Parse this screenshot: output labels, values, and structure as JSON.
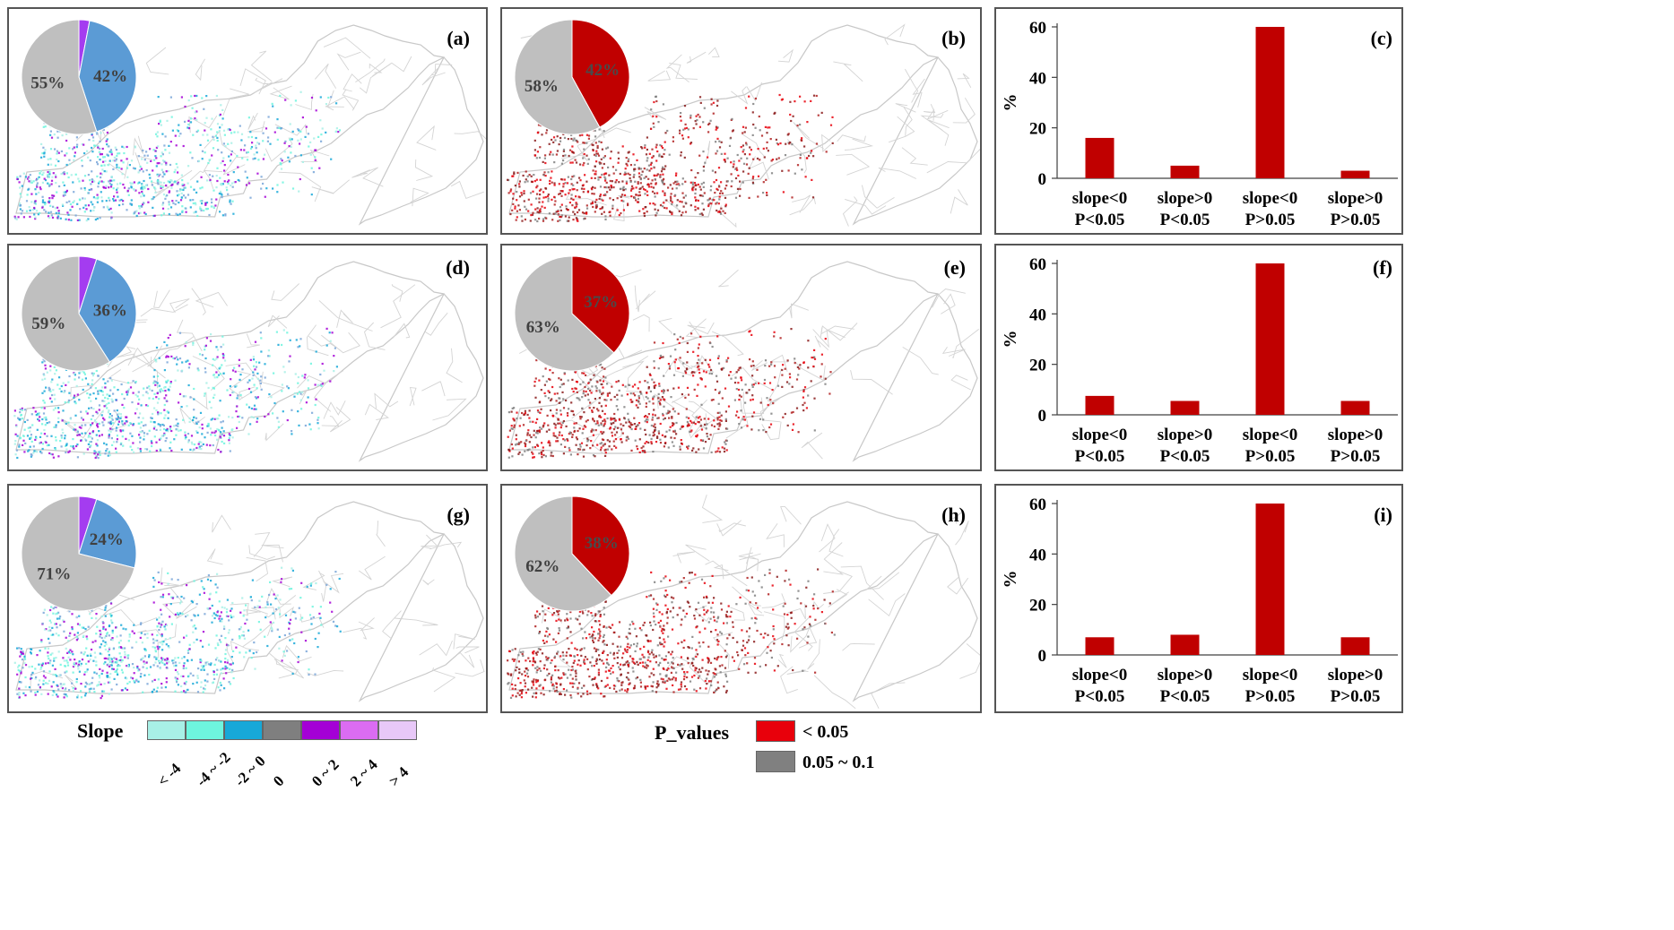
{
  "colors": {
    "pie_blue": "#5b9bd5",
    "pie_gray": "#bfbfbf",
    "pie_purple": "#a43cf0",
    "pie_red": "#c00000",
    "bar_red": "#c00000",
    "map_outline": "#c8c8c8",
    "pv_sig": "#e8000b",
    "pv_marg": "#808080"
  },
  "panels": {
    "a": {
      "label": "(a)"
    },
    "b": {
      "label": "(b)"
    },
    "c": {
      "label": "(c)"
    },
    "d": {
      "label": "(d)"
    },
    "e": {
      "label": "(e)"
    },
    "f": {
      "label": "(f)"
    },
    "g": {
      "label": "(g)"
    },
    "h": {
      "label": "(h)"
    },
    "i": {
      "label": "(i)"
    }
  },
  "chart_data": [
    {
      "panel": "a",
      "type": "pie",
      "labels": [
        "3%",
        "42%",
        "55%"
      ],
      "values": [
        3,
        42,
        55
      ],
      "colors": [
        "#a43cf0",
        "#5b9bd5",
        "#bfbfbf"
      ]
    },
    {
      "panel": "b",
      "type": "pie",
      "labels": [
        "42%",
        "58%"
      ],
      "values": [
        42,
        58
      ],
      "colors": [
        "#c00000",
        "#bfbfbf"
      ]
    },
    {
      "panel": "c",
      "type": "bar",
      "categories": [
        "slope<0|P<0.05",
        "slope>0|P<0.05",
        "slope<0|P>0.05",
        "slope>0|P>0.05"
      ],
      "values": [
        16,
        5,
        60,
        3
      ],
      "ylabel": "%",
      "ylim": [
        0,
        60
      ],
      "yticks": [
        0,
        20,
        40,
        60
      ]
    },
    {
      "panel": "d",
      "type": "pie",
      "labels": [
        "5%",
        "36%",
        "59%"
      ],
      "values": [
        5,
        36,
        59
      ],
      "colors": [
        "#a43cf0",
        "#5b9bd5",
        "#bfbfbf"
      ]
    },
    {
      "panel": "e",
      "type": "pie",
      "labels": [
        "37%",
        "63%"
      ],
      "values": [
        37,
        63
      ],
      "colors": [
        "#c00000",
        "#bfbfbf"
      ]
    },
    {
      "panel": "f",
      "type": "bar",
      "categories": [
        "slope<0|P<0.05",
        "slope>0|P<0.05",
        "slope<0|P>0.05",
        "slope>0|P>0.05"
      ],
      "values": [
        7.5,
        5.5,
        60,
        5.5
      ],
      "ylabel": "%",
      "ylim": [
        0,
        60
      ],
      "yticks": [
        0,
        20,
        40,
        60
      ]
    },
    {
      "panel": "g",
      "type": "pie",
      "labels": [
        "5%",
        "24%",
        "71%"
      ],
      "values": [
        5,
        24,
        71
      ],
      "colors": [
        "#a43cf0",
        "#5b9bd5",
        "#bfbfbf"
      ]
    },
    {
      "panel": "h",
      "type": "pie",
      "labels": [
        "38%",
        "62%"
      ],
      "values": [
        38,
        62
      ],
      "colors": [
        "#c00000",
        "#bfbfbf"
      ]
    },
    {
      "panel": "i",
      "type": "bar",
      "categories": [
        "slope<0|P<0.05",
        "slope>0|P<0.05",
        "slope<0|P>0.05",
        "slope>0|P>0.05"
      ],
      "values": [
        7,
        8,
        60,
        7
      ],
      "ylabel": "%",
      "ylim": [
        0,
        60
      ],
      "yticks": [
        0,
        20,
        40,
        60
      ]
    }
  ],
  "slope_legend": {
    "title": "Slope",
    "items": [
      {
        "label": "< -4",
        "color": "#a8f0e6"
      },
      {
        "label": "-4 ~ -2",
        "color": "#6ef5de"
      },
      {
        "label": "-2 ~ 0",
        "color": "#17a8d8"
      },
      {
        "label": "0",
        "color": "#7f7f7f"
      },
      {
        "label": "0 ~ 2",
        "color": "#a400d6"
      },
      {
        "label": "2 ~ 4",
        "color": "#db6cf2"
      },
      {
        "label": "> 4",
        "color": "#e8c8f8"
      }
    ]
  },
  "pvalue_legend": {
    "title": "P_values",
    "items": [
      {
        "label": "< 0.05",
        "color": "#e8000b"
      },
      {
        "label": "0.05 ~ 0.1",
        "color": "#808080"
      }
    ]
  }
}
